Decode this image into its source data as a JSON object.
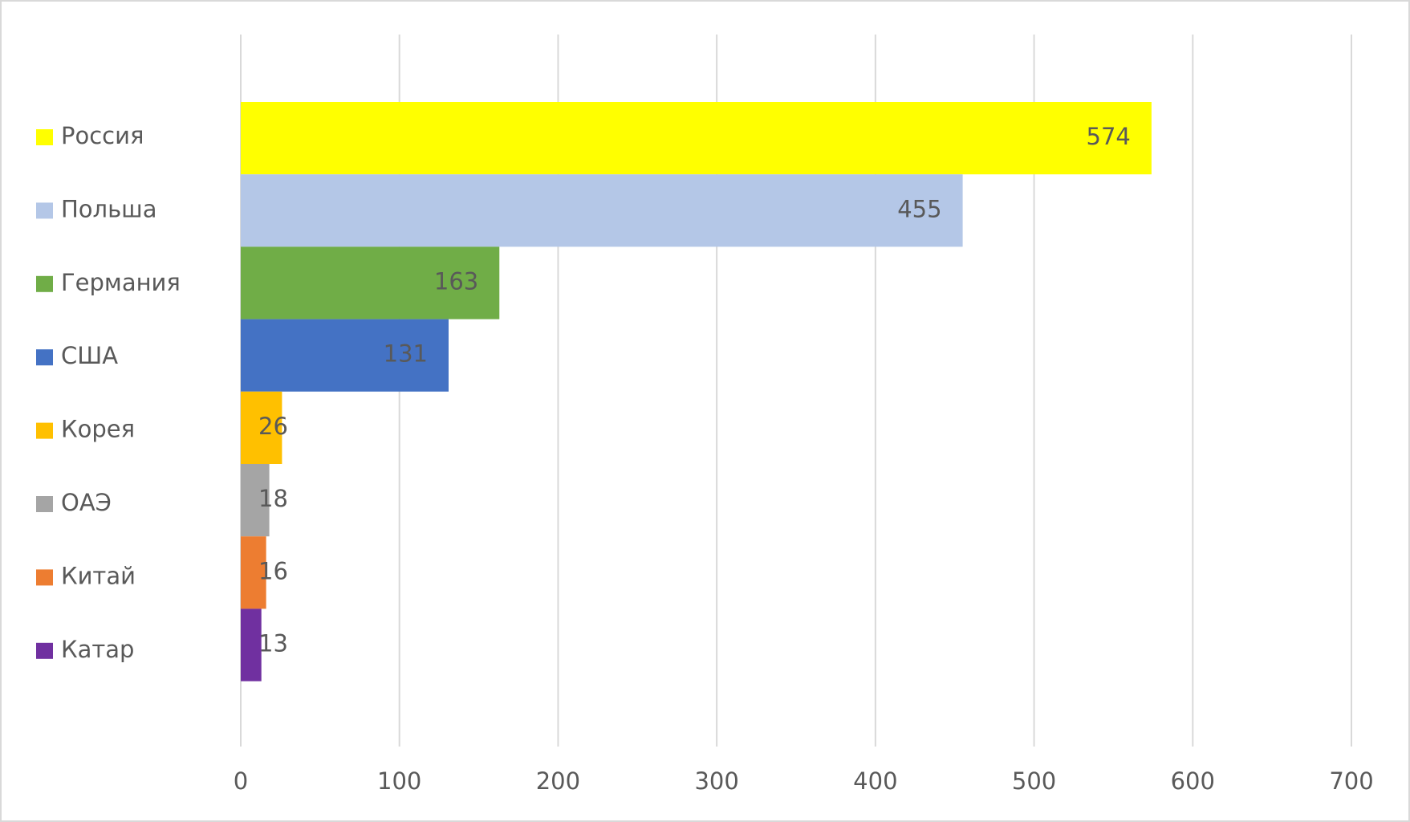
{
  "chart_data": {
    "type": "bar",
    "orientation": "horizontal",
    "categories": [
      null
    ],
    "series": [
      {
        "name": "Россия",
        "color": "#ffff00",
        "values": [
          574
        ]
      },
      {
        "name": "Польша",
        "color": "#b4c7e7",
        "values": [
          455
        ]
      },
      {
        "name": "Германия",
        "color": "#70ad47",
        "values": [
          163
        ]
      },
      {
        "name": "США",
        "color": "#4472c4",
        "values": [
          131
        ]
      },
      {
        "name": "Корея",
        "color": "#ffc000",
        "values": [
          26
        ]
      },
      {
        "name": "ОАЭ",
        "color": "#a5a5a5",
        "values": [
          18
        ]
      },
      {
        "name": "Китай",
        "color": "#ed7d31",
        "values": [
          16
        ]
      },
      {
        "name": "Катар",
        "color": "#7030a0",
        "values": [
          13
        ]
      }
    ],
    "xlim": [
      0,
      700
    ],
    "xticks": [
      0,
      100,
      200,
      300,
      400,
      500,
      600,
      700
    ],
    "grid": true,
    "legend": "left"
  }
}
